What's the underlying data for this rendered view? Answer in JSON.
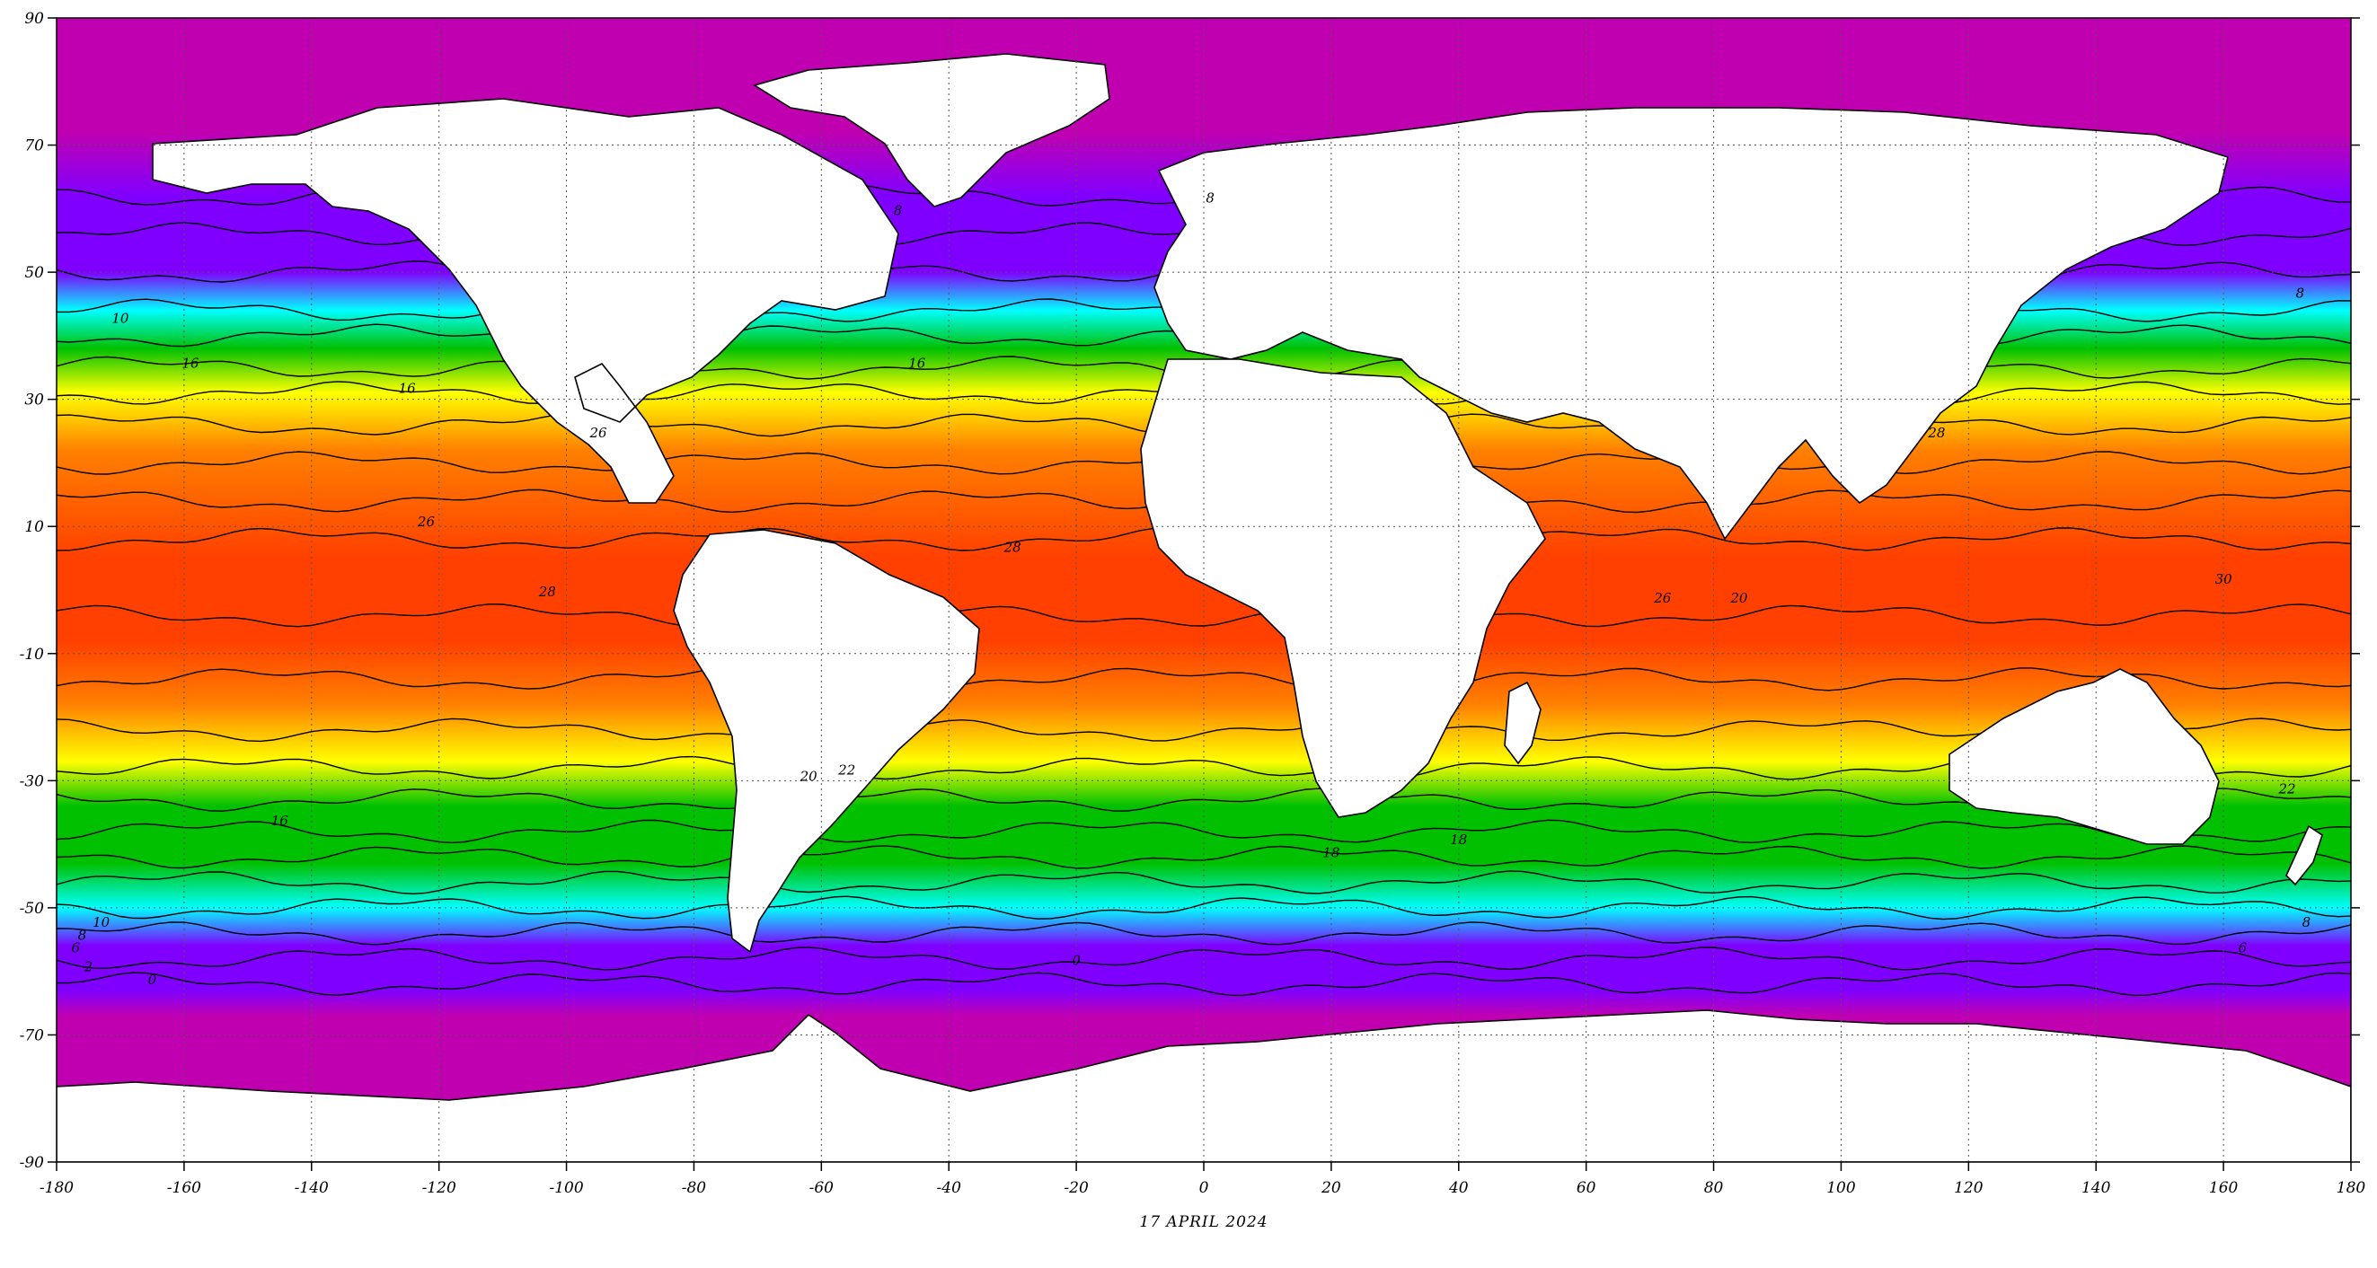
{
  "map": {
    "date_label": "17 APRIL 2024",
    "x_ticks": [
      "-180",
      "-160",
      "-140",
      "-120",
      "-100",
      "-80",
      "-60",
      "-40",
      "-20",
      "0",
      "20",
      "40",
      "60",
      "80",
      "100",
      "120",
      "140",
      "160",
      "180"
    ],
    "y_ticks": [
      "90",
      "70",
      "50",
      "30",
      "10",
      "-10",
      "-30",
      "-50",
      "-70",
      "-90"
    ],
    "isotherm_labels": [
      {
        "text": "0",
        "lon": -165,
        "lat": -62
      },
      {
        "text": "2",
        "lon": -175,
        "lat": -60
      },
      {
        "text": "6",
        "lon": -177,
        "lat": -57
      },
      {
        "text": "8",
        "lon": -176,
        "lat": -55
      },
      {
        "text": "10",
        "lon": -173,
        "lat": -53
      },
      {
        "text": "16",
        "lon": -145,
        "lat": -37
      },
      {
        "text": "20",
        "lon": -62,
        "lat": -30
      },
      {
        "text": "22",
        "lon": -56,
        "lat": -29
      },
      {
        "text": "28",
        "lon": -103,
        "lat": -1
      },
      {
        "text": "26",
        "lon": -122,
        "lat": 10
      },
      {
        "text": "26",
        "lon": -95,
        "lat": 24
      },
      {
        "text": "28",
        "lon": -30,
        "lat": 6
      },
      {
        "text": "16",
        "lon": -45,
        "lat": 35
      },
      {
        "text": "8",
        "lon": -48,
        "lat": 59
      },
      {
        "text": "8",
        "lon": 1,
        "lat": 61
      },
      {
        "text": "10",
        "lon": -170,
        "lat": 42
      },
      {
        "text": "16",
        "lon": -159,
        "lat": 35
      },
      {
        "text": "16",
        "lon": -125,
        "lat": 31
      },
      {
        "text": "18",
        "lon": 20,
        "lat": -42
      },
      {
        "text": "18",
        "lon": 40,
        "lat": -40
      },
      {
        "text": "20",
        "lon": 84,
        "lat": -2
      },
      {
        "text": "26",
        "lon": 72,
        "lat": -2
      },
      {
        "text": "28",
        "lon": 115,
        "lat": 24
      },
      {
        "text": "30",
        "lon": 160,
        "lat": 1
      },
      {
        "text": "22",
        "lon": 170,
        "lat": -32
      },
      {
        "text": "8",
        "lon": 173,
        "lat": -53
      },
      {
        "text": "6",
        "lon": 163,
        "lat": -57
      },
      {
        "text": "0",
        "lon": -20,
        "lat": -59
      },
      {
        "text": "8",
        "lon": 172,
        "lat": 46
      }
    ],
    "colors": {
      "ice": "#c000b0",
      "cold": "#8000ff",
      "cool": "#00ffff",
      "mild": "#00c000",
      "warm": "#ffff00",
      "hot": "#ff8000",
      "hottest": "#ff4000",
      "land": "#ffffff"
    }
  }
}
